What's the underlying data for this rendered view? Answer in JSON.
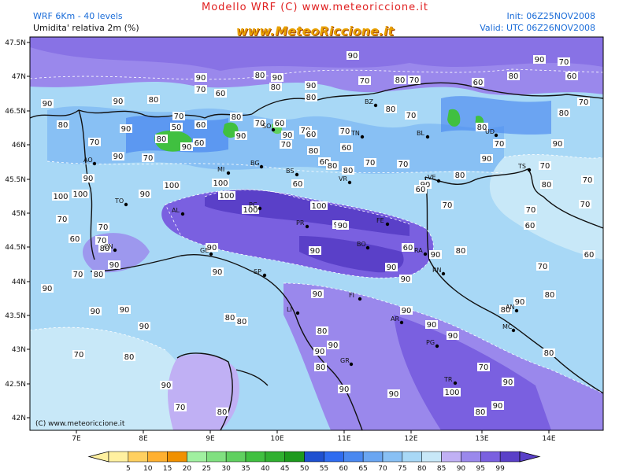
{
  "header": {
    "title": "Modello WRF (C) www.meteoriccione.it",
    "model": "WRF 6Km - 40 levels",
    "variable": "Umidita' relativa 2m (%)",
    "init": "Init: 06Z25NOV2008",
    "valid": "Valid: UTC 06Z26NOV2008",
    "logo": "www.MeteoRiccione.it"
  },
  "copyright": "(C) www.meteoriccione.it",
  "axes": {
    "lat_labels": [
      "47.5N",
      "47N",
      "46.5N",
      "46N",
      "45.5N",
      "45N",
      "44.5N",
      "44N",
      "43.5N",
      "43N",
      "42.5N",
      "42N"
    ],
    "lon_labels": [
      "7E",
      "8E",
      "9E",
      "10E",
      "11E",
      "12E",
      "13E",
      "14E"
    ]
  },
  "colorbar": {
    "ticks": [
      "5",
      "10",
      "15",
      "20",
      "25",
      "30",
      "35",
      "40",
      "45",
      "50",
      "55",
      "60",
      "65",
      "70",
      "75",
      "80",
      "85",
      "90",
      "95",
      "99"
    ],
    "colors": [
      "#fff0a0",
      "#ffd060",
      "#ffb030",
      "#f09000",
      "#a0f0a0",
      "#80e080",
      "#60d060",
      "#40c040",
      "#30b030",
      "#1d9a1d",
      "#1e50d0",
      "#2f6cf0",
      "#4a88f0",
      "#6aa6f2",
      "#88c0f4",
      "#a8d8f6",
      "#c8e8f8",
      "#c0b0f4",
      "#9a88ec",
      "#7a60e0",
      "#5a40c8"
    ]
  },
  "cities": [
    {
      "code": "AO"
    },
    {
      "code": "TO"
    },
    {
      "code": "CN"
    },
    {
      "code": "AL"
    },
    {
      "code": "GE"
    },
    {
      "code": "MI"
    },
    {
      "code": "BG"
    },
    {
      "code": "BS"
    },
    {
      "code": "SO"
    },
    {
      "code": "BZ"
    },
    {
      "code": "TN"
    },
    {
      "code": "VR"
    },
    {
      "code": "BL"
    },
    {
      "code": "UD"
    },
    {
      "code": "TS"
    },
    {
      "code": "VE"
    },
    {
      "code": "PC"
    },
    {
      "code": "PR"
    },
    {
      "code": "FE"
    },
    {
      "code": "BO"
    },
    {
      "code": "RA"
    },
    {
      "code": "RN"
    },
    {
      "code": "SP"
    },
    {
      "code": "LI"
    },
    {
      "code": "FI"
    },
    {
      "code": "AR"
    },
    {
      "code": "PG"
    },
    {
      "code": "AN"
    },
    {
      "code": "MC"
    },
    {
      "code": "GR"
    },
    {
      "code": "TR"
    }
  ],
  "contour_labels": [
    "90",
    "80",
    "90",
    "80",
    "90",
    "70",
    "90",
    "90",
    "70",
    "80",
    "90",
    "60",
    "90",
    "70",
    "60",
    "80",
    "80",
    "90",
    "70",
    "90",
    "80",
    "90",
    "80",
    "60",
    "50",
    "60",
    "70",
    "60",
    "70",
    "70",
    "80",
    "60",
    "80",
    "70",
    "90",
    "70",
    "80",
    "70",
    "80",
    "70",
    "60",
    "80",
    "90",
    "70",
    "70",
    "60",
    "80",
    "90",
    "100",
    "100",
    "100",
    "90",
    "90",
    "90",
    "80",
    "70",
    "100",
    "100",
    "90",
    "100",
    "100",
    "90",
    "90",
    "60",
    "90",
    "80",
    "70",
    "90",
    "70",
    "80",
    "90",
    "80",
    "70",
    "60",
    "70",
    "70",
    "80",
    "90",
    "80",
    "70",
    "90",
    "90",
    "90",
    "90",
    "80",
    "80",
    "90",
    "90",
    "90",
    "80",
    "90",
    "90",
    "80",
    "90",
    "90",
    "90",
    "90",
    "90",
    "100",
    "90",
    "80",
    "90",
    "70",
    "80",
    "70",
    "60",
    "60",
    "70",
    "80",
    "70",
    "70",
    "90",
    "80",
    "60",
    "70",
    "70",
    "60",
    "80",
    "60",
    "90",
    "90",
    "80",
    "70",
    "80",
    "70"
  ]
}
